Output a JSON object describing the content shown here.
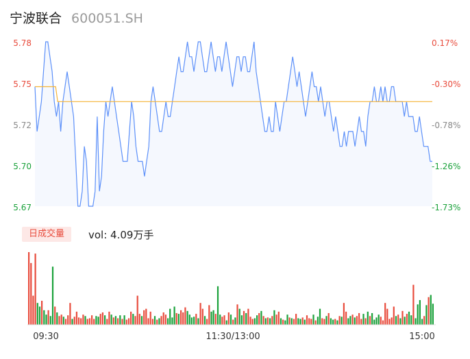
{
  "header": {
    "name": "宁波联合",
    "code": "600051.SH"
  },
  "volume": {
    "tab_label": "日成交量",
    "label": "vol: 4.09万手"
  },
  "colors": {
    "price_line": "#5b8ff9",
    "avg_line": "#f5b335",
    "area_fill": "#f5f8fe",
    "up": "#e84b3c",
    "down": "#1aa13a",
    "neutral": "#888888"
  },
  "chart_data": [
    {
      "type": "line",
      "title": "",
      "x_ticks": [
        "09:30",
        "11:30/13:00",
        "15:00"
      ],
      "y_ticks": [
        "5.78",
        "5.75",
        "5.72",
        "5.70",
        "5.67"
      ],
      "y_right_ticks": [
        "0.17%",
        "-0.30%",
        "-0.78%",
        "-1.26%",
        "-1.73%"
      ],
      "ylim": [
        5.67,
        5.78
      ],
      "series": [
        {
          "values": [
            5.75,
            5.72,
            5.73,
            5.74,
            5.76,
            5.78,
            5.78,
            5.77,
            5.76,
            5.74,
            5.73,
            5.74,
            5.72,
            5.74,
            5.75,
            5.76,
            5.75,
            5.74,
            5.73,
            5.7,
            5.67,
            5.67,
            5.68,
            5.71,
            5.7,
            5.67,
            5.67,
            5.67,
            5.68,
            5.73,
            5.68,
            5.69,
            5.72,
            5.74,
            5.73,
            5.74,
            5.75,
            5.74,
            5.73,
            5.72,
            5.71,
            5.7,
            5.7,
            5.7,
            5.72,
            5.74,
            5.73,
            5.71,
            5.7,
            5.7,
            5.7,
            5.69,
            5.7,
            5.71,
            5.74,
            5.75,
            5.74,
            5.73,
            5.72,
            5.72,
            5.73,
            5.74,
            5.73,
            5.73,
            5.74,
            5.75,
            5.76,
            5.77,
            5.76,
            5.76,
            5.77,
            5.78,
            5.77,
            5.77,
            5.76,
            5.77,
            5.78,
            5.78,
            5.77,
            5.76,
            5.76,
            5.77,
            5.78,
            5.77,
            5.76,
            5.77,
            5.77,
            5.76,
            5.77,
            5.78,
            5.77,
            5.76,
            5.75,
            5.76,
            5.77,
            5.77,
            5.76,
            5.77,
            5.77,
            5.76,
            5.76,
            5.77,
            5.78,
            5.76,
            5.75,
            5.74,
            5.73,
            5.72,
            5.72,
            5.73,
            5.72,
            5.72,
            5.74,
            5.73,
            5.72,
            5.73,
            5.74,
            5.74,
            5.75,
            5.76,
            5.77,
            5.76,
            5.75,
            5.76,
            5.75,
            5.74,
            5.73,
            5.74,
            5.75,
            5.76,
            5.75,
            5.75,
            5.74,
            5.75,
            5.74,
            5.73,
            5.74,
            5.74,
            5.73,
            5.72,
            5.73,
            5.72,
            5.71,
            5.71,
            5.72,
            5.71,
            5.72,
            5.72,
            5.72,
            5.71,
            5.72,
            5.73,
            5.72,
            5.72,
            5.71,
            5.73,
            5.74,
            5.74,
            5.75,
            5.74,
            5.74,
            5.75,
            5.74,
            5.75,
            5.74,
            5.74,
            5.75,
            5.75,
            5.74,
            5.74,
            5.74,
            5.74,
            5.73,
            5.74,
            5.73,
            5.73,
            5.73,
            5.72,
            5.72,
            5.73,
            5.72,
            5.71,
            5.71,
            5.71,
            5.7,
            5.7
          ]
        },
        {
          "values": [
            5.75,
            5.75,
            5.75,
            5.75,
            5.75,
            5.75,
            5.75,
            5.75,
            5.75,
            5.75,
            5.75,
            5.74,
            5.74,
            5.74,
            5.74,
            5.74,
            5.74,
            5.74,
            5.74,
            5.74,
            5.74,
            5.74,
            5.74,
            5.74,
            5.74,
            5.74,
            5.74,
            5.74,
            5.74,
            5.74,
            5.74,
            5.74,
            5.74,
            5.74,
            5.74,
            5.74,
            5.74,
            5.74,
            5.74,
            5.74,
            5.74,
            5.74,
            5.74,
            5.74,
            5.74,
            5.74,
            5.74,
            5.74,
            5.74,
            5.74,
            5.74,
            5.74,
            5.74,
            5.74,
            5.74,
            5.74,
            5.74,
            5.74,
            5.74,
            5.74,
            5.74,
            5.74,
            5.74,
            5.74,
            5.74,
            5.74,
            5.74,
            5.74,
            5.74,
            5.74,
            5.74,
            5.74,
            5.74,
            5.74,
            5.74,
            5.74,
            5.74,
            5.74,
            5.74,
            5.74,
            5.74,
            5.74,
            5.74,
            5.74,
            5.74,
            5.74,
            5.74,
            5.74,
            5.74,
            5.74,
            5.74,
            5.74,
            5.74,
            5.74,
            5.74,
            5.74,
            5.74,
            5.74,
            5.74,
            5.74,
            5.74,
            5.74,
            5.74,
            5.74,
            5.74,
            5.74,
            5.74,
            5.74,
            5.74,
            5.74,
            5.74,
            5.74,
            5.74,
            5.74,
            5.74,
            5.74,
            5.74,
            5.74,
            5.74,
            5.74,
            5.74,
            5.74,
            5.74,
            5.74,
            5.74,
            5.74,
            5.74,
            5.74,
            5.74,
            5.74,
            5.74,
            5.74,
            5.74,
            5.74,
            5.74,
            5.74,
            5.74,
            5.74,
            5.74,
            5.74,
            5.74,
            5.74,
            5.74,
            5.74,
            5.74,
            5.74,
            5.74,
            5.74,
            5.74,
            5.74,
            5.74,
            5.74,
            5.74,
            5.74,
            5.74,
            5.74,
            5.74,
            5.74,
            5.74,
            5.74,
            5.74,
            5.74,
            5.74,
            5.74,
            5.74,
            5.74,
            5.74,
            5.74,
            5.74,
            5.74,
            5.74,
            5.74,
            5.74,
            5.74,
            5.74,
            5.74,
            5.74,
            5.74,
            5.74,
            5.74,
            5.74,
            5.74,
            5.74,
            5.74,
            5.74,
            5.74,
            5.74,
            5.74,
            5.74,
            5.74,
            5.74,
            5.74,
            5.74
          ]
        }
      ]
    },
    {
      "type": "bar",
      "title": "",
      "values": [
        100,
        85,
        40,
        98,
        30,
        25,
        33,
        20,
        14,
        20,
        12,
        80,
        25,
        17,
        12,
        14,
        11,
        8,
        13,
        30,
        8,
        11,
        18,
        10,
        9,
        14,
        12,
        8,
        9,
        13,
        8,
        12,
        11,
        15,
        17,
        13,
        8,
        18,
        14,
        10,
        12,
        9,
        13,
        8,
        13,
        7,
        9,
        18,
        15,
        12,
        40,
        15,
        12,
        20,
        22,
        9,
        18,
        8,
        12,
        7,
        9,
        12,
        17,
        14,
        9,
        22,
        10,
        25,
        16,
        15,
        20,
        17,
        24,
        19,
        14,
        10,
        11,
        15,
        9,
        30,
        22,
        12,
        8,
        27,
        18,
        20,
        15,
        53,
        14,
        11,
        13,
        6,
        17,
        14,
        7,
        10,
        28,
        22,
        13,
        19,
        16,
        22,
        11,
        8,
        9,
        13,
        16,
        19,
        12,
        9,
        10,
        9,
        12,
        20,
        14,
        18,
        9,
        7,
        6,
        14,
        10,
        9,
        8,
        15,
        9,
        8,
        10,
        7,
        13,
        9,
        8,
        14,
        6,
        11,
        22,
        9,
        8,
        12,
        16,
        9,
        7,
        8,
        6,
        12,
        11,
        30,
        18,
        9,
        12,
        14,
        10,
        12,
        16,
        8,
        15,
        9,
        18,
        12,
        16,
        7,
        10,
        14,
        11,
        6,
        30,
        22,
        8,
        10,
        25,
        12,
        14,
        9,
        19,
        11,
        15,
        18,
        13,
        55,
        9,
        28,
        34,
        8,
        12,
        27,
        38,
        41,
        29
      ],
      "colors": [
        "up",
        "up",
        "up",
        "up",
        "down",
        "down",
        "up",
        "down",
        "down",
        "up",
        "down",
        "down",
        "up",
        "down",
        "up",
        "up",
        "down",
        "up",
        "up",
        "up",
        "down",
        "up",
        "up",
        "up",
        "up",
        "up",
        "down",
        "up",
        "up",
        "up",
        "up",
        "down",
        "down",
        "up",
        "up",
        "down",
        "up",
        "up",
        "down",
        "up",
        "down",
        "up",
        "down",
        "up",
        "down",
        "up",
        "up",
        "up",
        "down",
        "up",
        "up",
        "up",
        "down",
        "up",
        "up",
        "up",
        "up",
        "up",
        "down",
        "up",
        "down",
        "up",
        "up",
        "up",
        "down",
        "down",
        "down",
        "down",
        "up",
        "down",
        "up",
        "up",
        "up",
        "down",
        "down",
        "down",
        "down",
        "up",
        "down",
        "up",
        "up",
        "down",
        "up",
        "up",
        "down",
        "down",
        "up",
        "down",
        "down",
        "up",
        "up",
        "down",
        "up",
        "down",
        "up",
        "down",
        "up",
        "down",
        "down",
        "up",
        "down",
        "up",
        "up",
        "up",
        "down",
        "down",
        "up",
        "down",
        "up",
        "down",
        "up",
        "down",
        "up",
        "down",
        "up",
        "up",
        "down",
        "up",
        "down",
        "down",
        "up",
        "down",
        "up",
        "up",
        "down",
        "down",
        "up",
        "down",
        "up",
        "up",
        "up",
        "down",
        "up",
        "down",
        "down",
        "up",
        "up",
        "down",
        "up",
        "down",
        "down",
        "up",
        "down",
        "up",
        "down",
        "up",
        "up",
        "down",
        "down",
        "up",
        "down",
        "up",
        "up",
        "up",
        "down",
        "up",
        "down",
        "up",
        "down",
        "down",
        "down",
        "down",
        "up",
        "up",
        "up",
        "up",
        "up",
        "up",
        "up",
        "down",
        "up",
        "down",
        "up",
        "down",
        "up",
        "down",
        "down",
        "up",
        "down",
        "down",
        "down",
        "down",
        "up",
        "down",
        "up",
        "down",
        "down",
        "up",
        "up",
        "down",
        "down",
        "down",
        "neutral"
      ]
    }
  ]
}
